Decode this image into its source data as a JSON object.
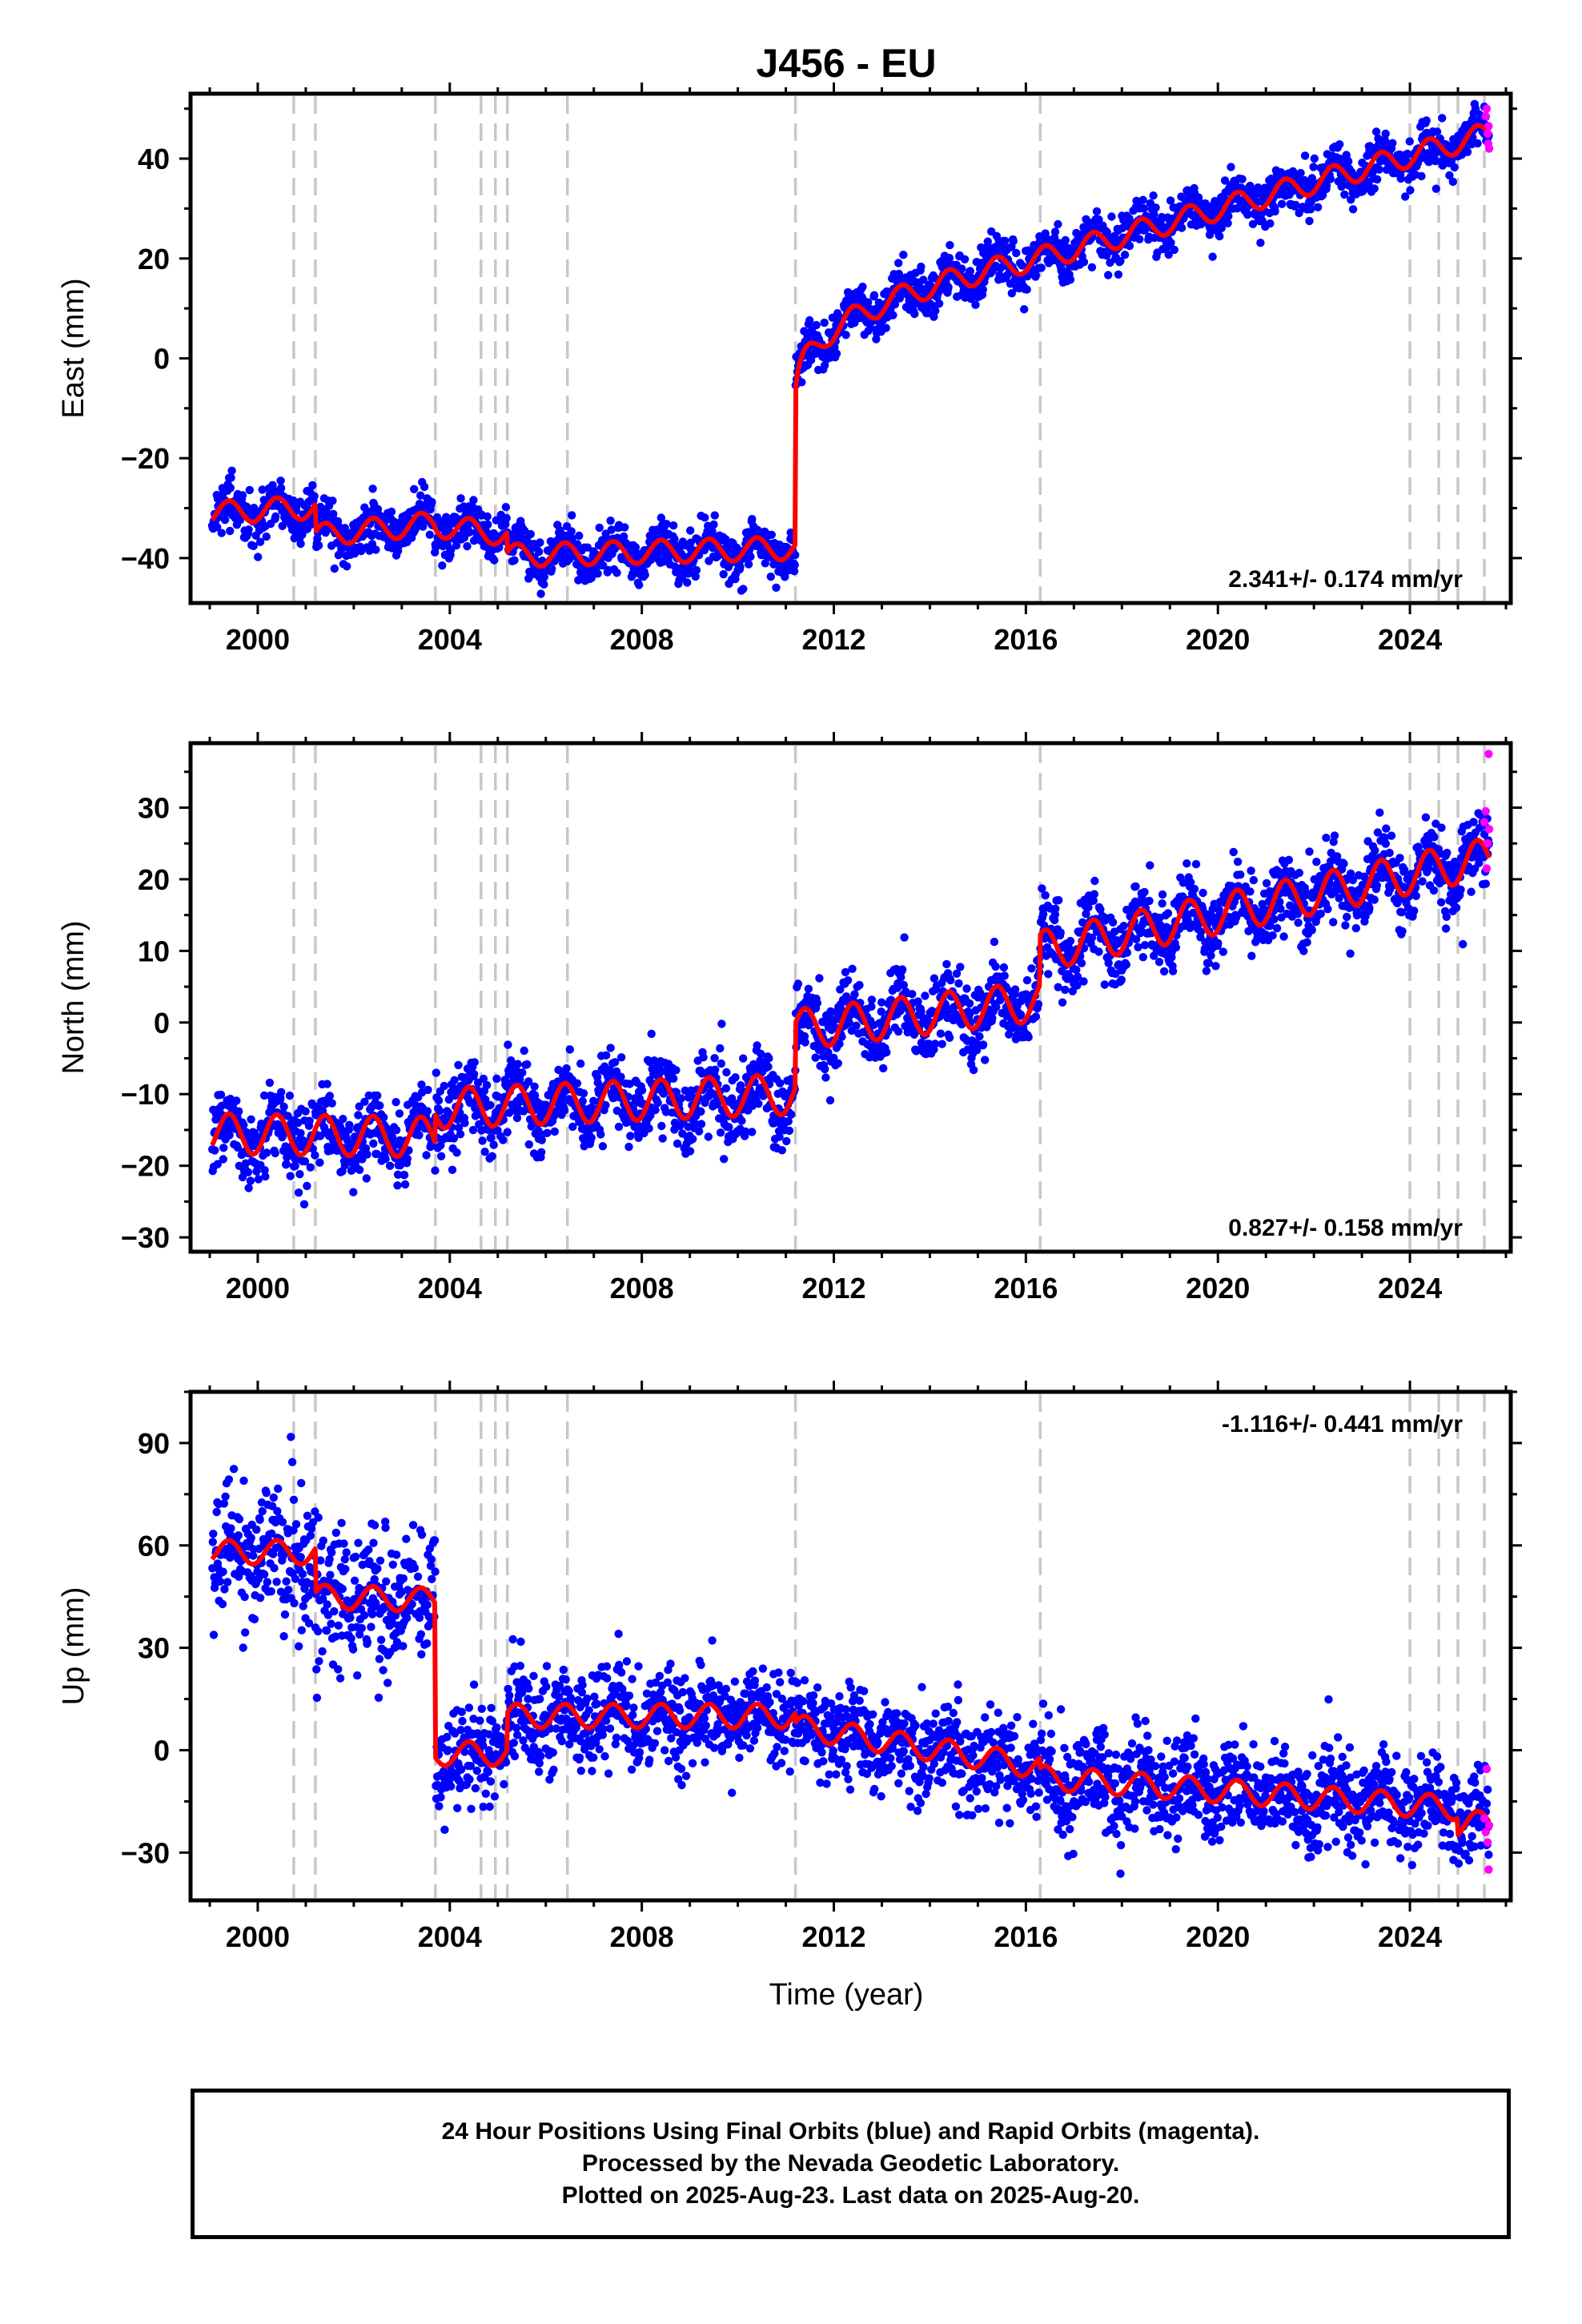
{
  "chart_data": {
    "type": "scatter",
    "title": "J456 - EU",
    "xlabel": "Time (year)",
    "xlim": [
      1998.6,
      2026.1
    ],
    "xticks": [
      2000,
      2004,
      2008,
      2012,
      2016,
      2020,
      2024
    ],
    "grid": false,
    "event_lines_years": [
      2000.75,
      2001.2,
      2003.7,
      2004.65,
      2004.95,
      2005.2,
      2006.45,
      2011.2,
      2016.3,
      2024.0,
      2024.6,
      2025.0,
      2025.55
    ],
    "colors": {
      "final_orbits": "#0000ff",
      "rapid_orbits": "#ff00ff",
      "model": "#ff0000",
      "event_lines": "#c8c8c8"
    },
    "panels": [
      {
        "name": "east",
        "ylabel": "East (mm)",
        "ylim": [
          -49,
          53
        ],
        "yticks": [
          -40,
          -20,
          0,
          20,
          40
        ],
        "yticklabels": [
          "−40",
          "−20",
          "0",
          "20",
          "40"
        ],
        "rate": "2.341+/- 0.174 mm/yr",
        "rate_position": "bottom-right",
        "model": {
          "seasonal_amplitude": 2.3,
          "scatter": 2.3,
          "segments": [
            {
              "x0": 1999.05,
              "x1": 2000.75,
              "y0": -31,
              "y1": -30
            },
            {
              "x0": 2000.75,
              "x1": 2001.2,
              "y0": -30,
              "y1": -30
            },
            {
              "x0": 2001.2,
              "x1": 2003.7,
              "y0": -35.5,
              "y1": -33
            },
            {
              "x0": 2003.7,
              "x1": 2004.95,
              "y0": -33.5,
              "y1": -35
            },
            {
              "x0": 2004.95,
              "x1": 2005.2,
              "y0": -35,
              "y1": -35.5
            },
            {
              "x0": 2005.2,
              "x1": 2011.2,
              "y0": -39.5,
              "y1": -38
            },
            {
              "x0": 2011.2,
              "x1": 2016.3,
              "y0": -10,
              "y1": 20,
              "curve": 0.35
            },
            {
              "x0": 2016.3,
              "x1": 2025.65,
              "y0": 20,
              "y1": 45
            }
          ]
        },
        "rapid_points": [
          [
            2025.58,
            48.5
          ],
          [
            2025.6,
            50
          ],
          [
            2025.62,
            45
          ],
          [
            2025.63,
            43
          ],
          [
            2025.64,
            46.5
          ],
          [
            2025.65,
            42
          ]
        ]
      },
      {
        "name": "north",
        "ylabel": "North (mm)",
        "ylim": [
          -32,
          39
        ],
        "yticks": [
          -30,
          -20,
          -10,
          0,
          10,
          20,
          30
        ],
        "yticklabels": [
          "−30",
          "−20",
          "−10",
          "0",
          "10",
          "20",
          "30"
        ],
        "rate": "0.827+/- 0.158 mm/yr",
        "rate_position": "bottom-right",
        "model": {
          "seasonal_amplitude": 2.8,
          "scatter": 2.6,
          "segments": [
            {
              "x0": 1999.05,
              "x1": 2003.7,
              "y0": -15.5,
              "y1": -16
            },
            {
              "x0": 2003.7,
              "x1": 2011.2,
              "y0": -12,
              "y1": -10
            },
            {
              "x0": 2011.2,
              "x1": 2016.3,
              "y0": -1,
              "y1": 3
            },
            {
              "x0": 2016.3,
              "x1": 2025.65,
              "y0": 10,
              "y1": 23
            }
          ]
        },
        "rapid_points": [
          [
            2025.55,
            28
          ],
          [
            2025.58,
            29.5
          ],
          [
            2025.6,
            21.5
          ],
          [
            2025.62,
            25
          ],
          [
            2025.64,
            37.5
          ],
          [
            2025.65,
            27
          ]
        ]
      },
      {
        "name": "up",
        "ylabel": "Up (mm)",
        "ylim": [
          -44,
          105
        ],
        "yticks": [
          -30,
          0,
          30,
          60,
          90
        ],
        "yticklabels": [
          "−30",
          "0",
          "30",
          "60",
          "90"
        ],
        "rate": "-1.116+/- 0.441 mm/yr",
        "rate_position": "top-right",
        "model": {
          "seasonal_amplitude": 3.5,
          "scatter": 7.0,
          "segments": [
            {
              "x0": 1999.05,
              "x1": 2001.2,
              "y0": 58,
              "y1": 58,
              "scatter": 10
            },
            {
              "x0": 2001.2,
              "x1": 2003.7,
              "y0": 45,
              "y1": 44,
              "scatter": 10
            },
            {
              "x0": 2003.7,
              "x1": 2005.2,
              "y0": -1,
              "y1": -1
            },
            {
              "x0": 2005.2,
              "x1": 2011.2,
              "y0": 10,
              "y1": 10
            },
            {
              "x0": 2011.2,
              "x1": 2016.3,
              "y0": 7,
              "y1": -5
            },
            {
              "x0": 2016.3,
              "x1": 2025.0,
              "y0": -8,
              "y1": -17
            },
            {
              "x0": 2025.0,
              "x1": 2025.65,
              "y0": -22,
              "y1": -21
            }
          ]
        },
        "rapid_points": [
          [
            2025.55,
            -20
          ],
          [
            2025.58,
            -24
          ],
          [
            2025.6,
            -5.5
          ],
          [
            2025.62,
            -27
          ],
          [
            2025.64,
            -35
          ],
          [
            2025.65,
            -22
          ]
        ]
      }
    ],
    "footer": [
      "24 Hour Positions Using Final Orbits (blue) and Rapid Orbits (magenta).",
      "Processed by the Nevada Geodetic Laboratory.",
      "Plotted on 2025-Aug-23. Last data on 2025-Aug-20."
    ]
  }
}
